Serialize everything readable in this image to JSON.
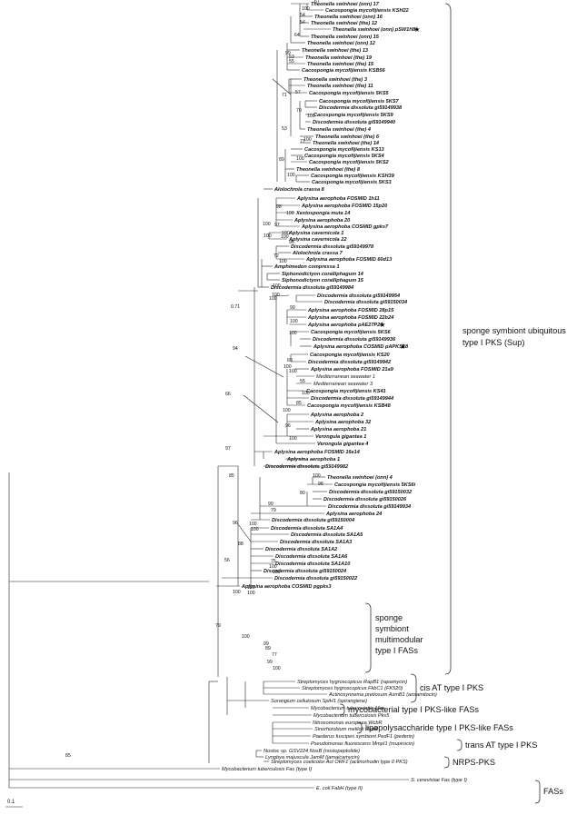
{
  "leaves": [
    {
      "label": "Theonella swinhoei (onn) 17",
      "style": "b"
    },
    {
      "label": "Cacospongia mycofijiensis KSH22",
      "style": "b"
    },
    {
      "label": "Theonella swinhoei (onn) 16",
      "style": "b"
    },
    {
      "label": "Theonella swinhoei (the) 12",
      "style": "b"
    },
    {
      "label": "Theonella swinhoei (onn) pSW1H8",
      "style": "b",
      "star": true
    },
    {
      "label": "Theonella swinhoei (onn) 15",
      "style": "b"
    },
    {
      "label": "Theonella swinhoei (onn) 12",
      "style": "b"
    },
    {
      "label": "Theonella swinhoei (the) 13",
      "style": "b"
    },
    {
      "label": "Theonella swinhoei (the) 19",
      "style": "b"
    },
    {
      "label": "Theonella swinhoei (the) 15",
      "style": "b"
    },
    {
      "label": "Cacospongia mycofijiensis KSB56",
      "style": "b"
    },
    {
      "label": "Theonella swinhoei (the) 3",
      "style": "b"
    },
    {
      "label": "Theonella swinhoei (the) 11",
      "style": "b"
    },
    {
      "label": "Cacospongia mycofijiensis 5KS5",
      "style": "b"
    },
    {
      "label": "Cacospongia mycofijiensis 5KS7",
      "style": "b"
    },
    {
      "label": "Discodermia dissoluta gi59149938",
      "style": "b"
    },
    {
      "label": "Cacospongia mycofijiensis 5KS9",
      "style": "b"
    },
    {
      "label": "Discodermia dissoluta gi59149940",
      "style": "b"
    },
    {
      "label": "Theonella swinhoei (the) 4",
      "style": "b"
    },
    {
      "label": "Theonella swinhoei (the) 6",
      "style": "b"
    },
    {
      "label": "Theonella swinhoei (the) 14",
      "style": "b"
    },
    {
      "label": "Cacospongia mycofijiensis KS13",
      "style": "b"
    },
    {
      "label": "Cacospongia mycofijiensis 5KS4",
      "style": "b"
    },
    {
      "label": "Cacospongia mycofijiensis 5KS2",
      "style": "b"
    },
    {
      "label": "Theonella swinhoei (the) 8",
      "style": "b"
    },
    {
      "label": "Cacospongia mycofijiensis KSH39",
      "style": "b"
    },
    {
      "label": "Cacospongia mycofijiensis 5KS3",
      "style": "b"
    },
    {
      "label": "Alolochrola crassa 8",
      "style": "b"
    },
    {
      "label": "Aplysina aerophoba FOSMID 1h11",
      "style": "b"
    },
    {
      "label": "Aplysina aerophoba FOSMID 15p20",
      "style": "b"
    },
    {
      "label": "Xestospongia muta 14",
      "style": "b"
    },
    {
      "label": "Aplysina aerophoba 20",
      "style": "b"
    },
    {
      "label": "Aplysina aerophoba COSMID gpks7",
      "style": "b"
    },
    {
      "label": "Aplysina cavernicola 1",
      "style": "b"
    },
    {
      "label": "Aplysina cavernicola 22",
      "style": "b"
    },
    {
      "label": "Discodermia dissoluta gi59149978",
      "style": "b"
    },
    {
      "label": "Alolochrola crassa 7",
      "style": "b"
    },
    {
      "label": "Aplysina aerophoba FOSMID 60d13",
      "style": "b"
    },
    {
      "label": "Amphimedon compressa 1",
      "style": "b"
    },
    {
      "label": "Siphonodictyon coralliphagum 14",
      "style": "b"
    },
    {
      "label": "Siphonodictyon coralliphagum 15",
      "style": "b"
    },
    {
      "label": "Discodermia dissoluta gi59149984",
      "style": "b"
    },
    {
      "label": "Discodermia dissoluta gi59149954",
      "style": "b"
    },
    {
      "label": "Discodermia dissoluta gi59150034",
      "style": "b"
    },
    {
      "label": "Aplysina aerophoba FOSMID 28p15",
      "style": "b"
    },
    {
      "label": "Aplysina aerophoba FOSMID 22b24",
      "style": "b"
    },
    {
      "label": "Aplysina aerophoba pAE27P20",
      "style": "b",
      "star": true
    },
    {
      "label": "Cacospongia mycofijiensis 5KS6",
      "style": "b"
    },
    {
      "label": "Discodermia dissoluta gi59149936",
      "style": "b"
    },
    {
      "label": "Aplysina aerophoba COSMID pAPKS18",
      "style": "b",
      "star": true
    },
    {
      "label": "Cacospongia mycofijiensis KS20",
      "style": "b"
    },
    {
      "label": "Discodermia dissoluta gi59149942",
      "style": "b"
    },
    {
      "label": "Aplysina aerophoba FOSMID 21a9",
      "style": "b"
    },
    {
      "label": "Mediterranean seawater 1",
      "style": "n"
    },
    {
      "label": "Mediterranean seawater 3",
      "style": "n"
    },
    {
      "label": "Cacospongia mycofijiensis KS41",
      "style": "b"
    },
    {
      "label": "Discodermia dissoluta gi59149944",
      "style": "b"
    },
    {
      "label": "Cacospongia mycofijiensis KSB48",
      "style": "b"
    },
    {
      "label": "Aplysina aerophoba 2",
      "style": "b"
    },
    {
      "label": "Aplysina aerophoba 32",
      "style": "b"
    },
    {
      "label": "Aplysina aerophoba 21",
      "style": "b"
    },
    {
      "label": "Verongula gigantea 1",
      "style": "b"
    },
    {
      "label": "Verongula gigantea 4",
      "style": "b"
    },
    {
      "label": "Aplysina aerophoba FOSMID 16e14",
      "style": "b"
    },
    {
      "label": "Aplysina aerophoba 1",
      "style": "b"
    },
    {
      "label": "Discodermia dissoluta gi59149982",
      "style": "b"
    },
    {
      "label": "Theonella swinhoei (onn)  4",
      "style": "b"
    },
    {
      "label": "Cacospongia mycofijiensis 5KS6i",
      "style": "b"
    },
    {
      "label": "Discodermia dissoluta gi59150032",
      "style": "b"
    },
    {
      "label": "Discodermia dissoluta gi59150026",
      "style": "b"
    },
    {
      "label": "Discodermia dissoluta gi59149934",
      "style": "b"
    },
    {
      "label": "Aplysina aerophoba 24",
      "style": "b"
    },
    {
      "label": "Discodermia dissoluta gi59150004",
      "style": "b"
    },
    {
      "label": "Discodermia dissoluta SA1A4",
      "style": "b"
    },
    {
      "label": "Discodermia dissoluta SA1A5",
      "style": "b"
    },
    {
      "label": "Discodermia dissoluta SA1A3",
      "style": "b"
    },
    {
      "label": "Discodermia dissoluta SA1A2",
      "style": "b"
    },
    {
      "label": "Discodermia dissoluta SA1A6",
      "style": "b"
    },
    {
      "label": "Discodermia dissoluta SA1A10",
      "style": "b"
    },
    {
      "label": "Discodermia dissoluta gi59150024",
      "style": "b"
    },
    {
      "label": "Discodermia dissoluta gi59150022",
      "style": "b"
    },
    {
      "label": "Aplysina aerophoba COSMID pgpks3",
      "style": "b"
    },
    {
      "label": "Streptomyces hygroscopicus RapB1 (rapamycin)",
      "style": "n"
    },
    {
      "label": "Streptomyces hygroscopicus FkbC1 (FK520)",
      "style": "n"
    },
    {
      "label": "Actinosynnema pretiosum AsmB1 (ansamitocin)",
      "style": "n"
    },
    {
      "label": "Sorangium cellulosum SpiH1 (spirangiene)",
      "style": "n"
    },
    {
      "label": "Mycobacterium tuberculosis Mas",
      "style": "n"
    },
    {
      "label": "Mycobacterium tuberculosis Pks5",
      "style": "n"
    },
    {
      "label": "Nitrosomonas europaea WcbR",
      "style": "n"
    },
    {
      "label": "Sinorhizobium meliloti RkpA",
      "style": "n"
    },
    {
      "label": "Paederus fuscipes symbiont PedF1 (pederin)",
      "style": "n"
    },
    {
      "label": "Pseudomonas fluorescens MmpI1 (mupirocin)",
      "style": "n"
    },
    {
      "label": "Nostoc sp. GSV224 NosB (nostopeptolide)",
      "style": "n"
    },
    {
      "label": "Lyngbya majuscula JamM (jamaicamycin)",
      "style": "n"
    },
    {
      "label": "Streptomyces coelicolor Act ORF1 (actinorhodin type II PKS)",
      "style": "n"
    },
    {
      "label": "Mycobacterium tuberculosis Fas (type I)",
      "style": "n"
    },
    {
      "label": "S. cerevisiae Fas (type I)",
      "style": "n"
    },
    {
      "label": "E. coli FabH (type II)",
      "style": "n"
    }
  ],
  "bootstrap": [
    "67",
    "100",
    "54",
    "54",
    "64",
    "99",
    "53",
    "55",
    "71",
    "57",
    "70",
    "100",
    "53",
    "100",
    "77",
    "100",
    "89",
    "100",
    "100",
    "98",
    "100",
    "97",
    "100",
    "100",
    "100",
    "96",
    "72",
    "100",
    "0.71",
    "100",
    "100",
    "100",
    "94",
    "99",
    "100",
    "100",
    "69",
    "100",
    "100",
    "66",
    "55",
    "100",
    "85",
    "97",
    "100",
    "96",
    "100",
    "85",
    "100",
    "98",
    "80",
    "99",
    "79",
    "96",
    "100",
    "100",
    "88",
    "75",
    "100",
    "100",
    "56",
    "100",
    "100",
    "100",
    "79",
    "100",
    "99",
    "89",
    "77",
    "99",
    "100",
    "85"
  ],
  "clades": {
    "sup": [
      "sponge symbiont ubiquitous",
      "type I PKS (Sup)"
    ],
    "fas": [
      "sponge",
      "symbiont",
      "multimodular",
      "type I FASs"
    ],
    "cis_at": "cis AT type I PKS",
    "mycobacterial": "mycobacterial type I PKS-like FASs",
    "lps": "lipopolysaccharide type I PKS-like FASs",
    "trans_at": "trans AT type I PKS",
    "nrps": "NRPS-PKS",
    "fass": "FASs"
  },
  "scale_label": "0.1",
  "star_glyph": "★"
}
